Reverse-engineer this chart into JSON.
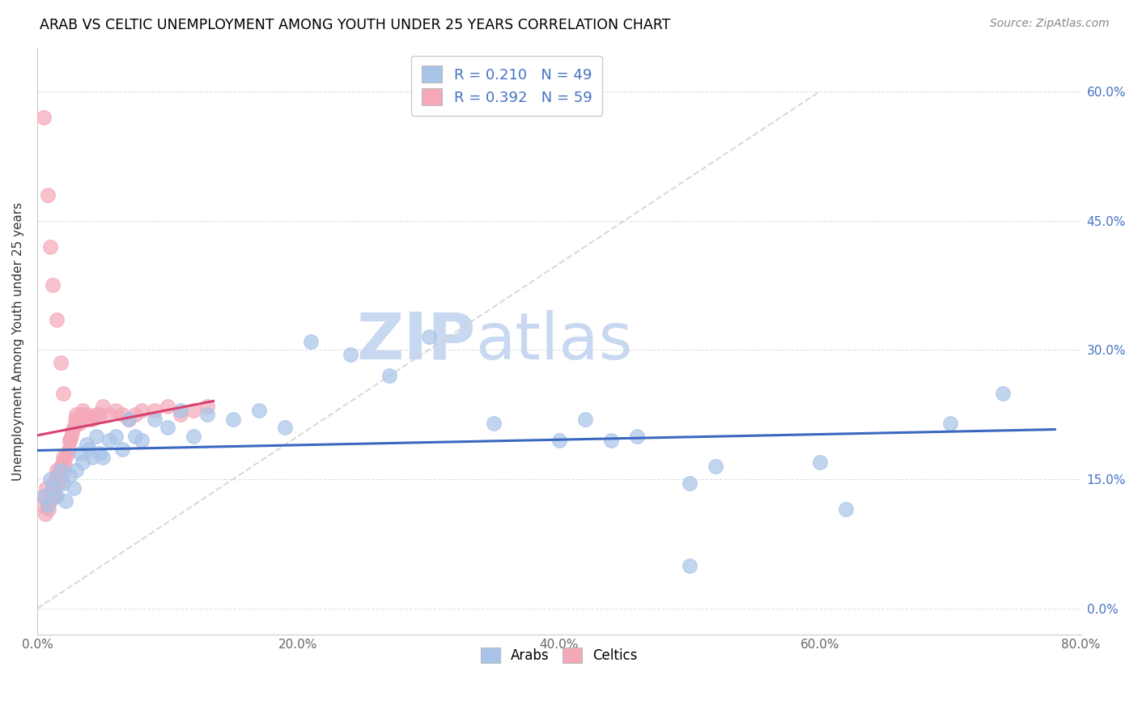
{
  "title": "ARAB VS CELTIC UNEMPLOYMENT AMONG YOUTH UNDER 25 YEARS CORRELATION CHART",
  "source": "Source: ZipAtlas.com",
  "ylabel": "Unemployment Among Youth under 25 years",
  "xlim": [
    0,
    0.8
  ],
  "ylim": [
    -0.03,
    0.65
  ],
  "xticks": [
    0.0,
    0.2,
    0.4,
    0.6,
    0.8
  ],
  "xticklabels": [
    "0.0%",
    "20.0%",
    "40.0%",
    "60.0%",
    "80.0%"
  ],
  "yticks": [
    0.0,
    0.15,
    0.3,
    0.45,
    0.6
  ],
  "yticklabels": [
    "0.0%",
    "15.0%",
    "30.0%",
    "45.0%",
    "60.0%"
  ],
  "arab_R": "0.210",
  "arab_N": "49",
  "celtic_R": "0.392",
  "celtic_N": "59",
  "arab_color": "#a8c4e8",
  "celtic_color": "#f4a8b8",
  "arab_line_color": "#3a68c0",
  "celtic_line_color": "#d84070",
  "watermark_zip": "ZIP",
  "watermark_atlas": "atlas",
  "watermark_color_zip": "#c8d8f0",
  "watermark_color_atlas": "#c8d8f0",
  "diag_color": "#d0d0d0",
  "arab_x": [
    0.005,
    0.008,
    0.01,
    0.012,
    0.015,
    0.018,
    0.02,
    0.022,
    0.025,
    0.028,
    0.03,
    0.033,
    0.035,
    0.038,
    0.04,
    0.042,
    0.045,
    0.048,
    0.05,
    0.055,
    0.06,
    0.065,
    0.07,
    0.075,
    0.08,
    0.09,
    0.1,
    0.11,
    0.12,
    0.13,
    0.15,
    0.17,
    0.19,
    0.21,
    0.24,
    0.27,
    0.3,
    0.35,
    0.4,
    0.42,
    0.44,
    0.46,
    0.5,
    0.52,
    0.6,
    0.62,
    0.7,
    0.74,
    0.5
  ],
  "arab_y": [
    0.13,
    0.12,
    0.15,
    0.14,
    0.13,
    0.16,
    0.145,
    0.125,
    0.155,
    0.14,
    0.16,
    0.18,
    0.17,
    0.19,
    0.185,
    0.175,
    0.2,
    0.18,
    0.175,
    0.195,
    0.2,
    0.185,
    0.22,
    0.2,
    0.195,
    0.22,
    0.21,
    0.23,
    0.2,
    0.225,
    0.22,
    0.23,
    0.21,
    0.31,
    0.295,
    0.27,
    0.315,
    0.215,
    0.195,
    0.22,
    0.195,
    0.2,
    0.145,
    0.165,
    0.17,
    0.115,
    0.215,
    0.25,
    0.05
  ],
  "celtic_x": [
    0.003,
    0.005,
    0.006,
    0.007,
    0.008,
    0.009,
    0.01,
    0.01,
    0.011,
    0.012,
    0.013,
    0.014,
    0.015,
    0.015,
    0.016,
    0.017,
    0.018,
    0.019,
    0.02,
    0.02,
    0.021,
    0.022,
    0.023,
    0.024,
    0.025,
    0.025,
    0.026,
    0.027,
    0.028,
    0.029,
    0.03,
    0.03,
    0.032,
    0.034,
    0.035,
    0.038,
    0.04,
    0.042,
    0.045,
    0.048,
    0.05,
    0.055,
    0.06,
    0.065,
    0.07,
    0.075,
    0.08,
    0.09,
    0.1,
    0.11,
    0.12,
    0.13,
    0.005,
    0.008,
    0.01,
    0.012,
    0.015,
    0.018,
    0.02
  ],
  "celtic_y": [
    0.12,
    0.13,
    0.11,
    0.14,
    0.12,
    0.115,
    0.125,
    0.135,
    0.13,
    0.145,
    0.14,
    0.13,
    0.155,
    0.16,
    0.15,
    0.145,
    0.165,
    0.155,
    0.17,
    0.175,
    0.165,
    0.175,
    0.18,
    0.185,
    0.195,
    0.195,
    0.2,
    0.205,
    0.21,
    0.22,
    0.215,
    0.225,
    0.215,
    0.225,
    0.23,
    0.225,
    0.22,
    0.22,
    0.225,
    0.225,
    0.235,
    0.225,
    0.23,
    0.225,
    0.22,
    0.225,
    0.23,
    0.23,
    0.235,
    0.225,
    0.23,
    0.235,
    0.57,
    0.48,
    0.42,
    0.375,
    0.335,
    0.285,
    0.25
  ]
}
